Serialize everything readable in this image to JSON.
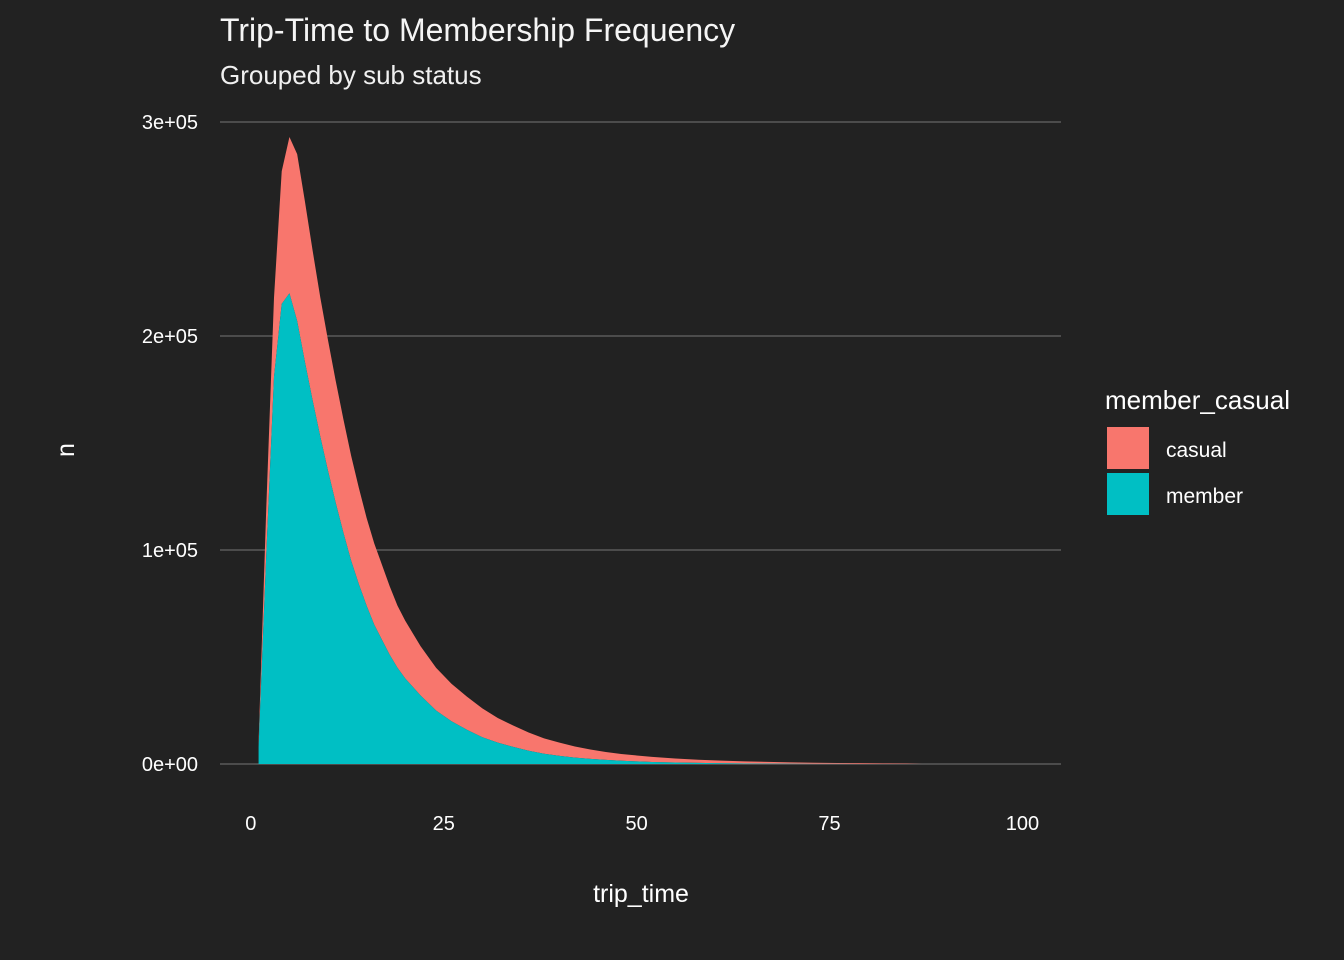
{
  "chart_data": {
    "type": "area",
    "stacked": true,
    "title": "Trip-Time to Membership Frequency",
    "subtitle": "Grouped by sub status",
    "xlabel": "trip_time",
    "ylabel": "n",
    "xlim": [
      -4,
      105
    ],
    "ylim": [
      0,
      300000
    ],
    "x_ticks": [
      0,
      25,
      50,
      75,
      100
    ],
    "x_tick_labels": [
      "0",
      "25",
      "50",
      "75",
      "100"
    ],
    "y_ticks": [
      0,
      100000,
      200000,
      300000
    ],
    "y_tick_labels": [
      "0e+00",
      "1e+05",
      "2e+05",
      "3e+05"
    ],
    "grid": "horizontal major",
    "legend": {
      "title": "member_casual",
      "position": "right",
      "entries": [
        "casual",
        "member"
      ]
    },
    "x": [
      1,
      2,
      3,
      4,
      5,
      6,
      7,
      8,
      9,
      10,
      11,
      12,
      13,
      14,
      15,
      16,
      17,
      18,
      19,
      20,
      22,
      24,
      26,
      28,
      30,
      32,
      34,
      36,
      38,
      40,
      42,
      44,
      46,
      48,
      50,
      52,
      55,
      58,
      61,
      64,
      67,
      70,
      73,
      76,
      79,
      82,
      85,
      87
    ],
    "series": [
      {
        "name": "member",
        "color": "#00BFC4",
        "values": [
          8000,
          98000,
          181000,
          215000,
          220000,
          207000,
          188000,
          170000,
          153000,
          137000,
          122000,
          108000,
          95000,
          84000,
          74000,
          65000,
          58000,
          51000,
          45000,
          40000,
          32000,
          25000,
          20000,
          16000,
          12500,
          10000,
          8000,
          6200,
          4800,
          3800,
          3000,
          2400,
          1900,
          1500,
          1200,
          950,
          700,
          500,
          350,
          250,
          180,
          120,
          80,
          50,
          30,
          20,
          10,
          0
        ]
      },
      {
        "name": "casual",
        "color": "#F8766D",
        "values": [
          2000,
          22000,
          37000,
          62000,
          73000,
          78000,
          75000,
          70000,
          65000,
          61000,
          57000,
          53000,
          49000,
          45000,
          41000,
          38000,
          35000,
          32000,
          29000,
          27000,
          23000,
          20000,
          17500,
          15500,
          13500,
          11500,
          10000,
          8500,
          7200,
          6200,
          5200,
          4400,
          3700,
          3200,
          2800,
          2400,
          1900,
          1500,
          1200,
          1000,
          800,
          650,
          500,
          400,
          300,
          220,
          150,
          0
        ]
      }
    ]
  }
}
